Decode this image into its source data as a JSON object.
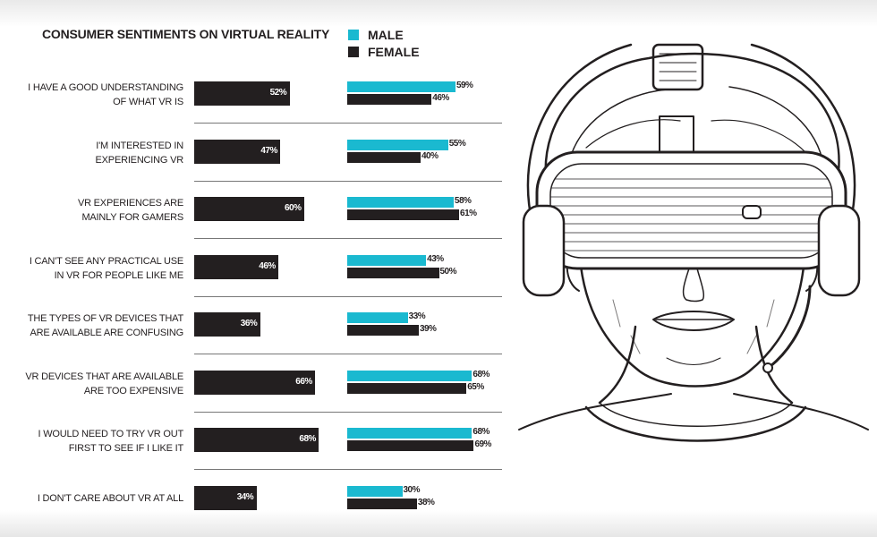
{
  "chart_data": {
    "type": "bar",
    "title": "CONSUMER SENTIMENTS ON VIRTUAL REALITY",
    "categories": [
      [
        "I HAVE A GOOD UNDERSTANDING",
        "OF WHAT VR IS"
      ],
      [
        "I'M INTERESTED IN",
        "EXPERIENCING VR"
      ],
      [
        "VR EXPERIENCES ARE",
        "MAINLY FOR GAMERS"
      ],
      [
        "I CAN'T SEE ANY PRACTICAL USE",
        "IN VR FOR PEOPLE LIKE ME"
      ],
      [
        "THE TYPES OF VR DEVICES THAT",
        "ARE AVAILABLE ARE CONFUSING"
      ],
      [
        "VR DEVICES THAT ARE AVAILABLE",
        "ARE TOO EXPENSIVE"
      ],
      [
        "I WOULD NEED TO TRY VR OUT",
        "FIRST TO SEE IF I LIKE IT"
      ],
      [
        "I DON'T CARE ABOUT VR AT ALL"
      ]
    ],
    "overall": [
      52,
      47,
      60,
      46,
      36,
      66,
      68,
      34
    ],
    "series": [
      {
        "name": "MALE",
        "color": "#1ab9d0",
        "values": [
          59,
          55,
          58,
          43,
          33,
          68,
          68,
          30
        ]
      },
      {
        "name": "FEMALE",
        "color": "#231f20",
        "values": [
          46,
          40,
          61,
          50,
          39,
          65,
          69,
          38
        ]
      }
    ],
    "unit": "%",
    "xlim": [
      0,
      100
    ],
    "legend": "top",
    "grid": false
  }
}
